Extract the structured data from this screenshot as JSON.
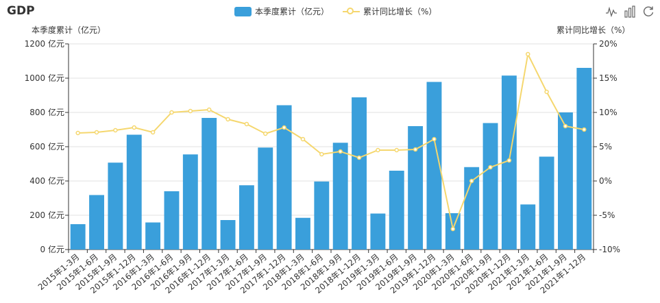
{
  "chart_data": {
    "type": "bar",
    "title": "GDP",
    "categories": [
      "2015年1-3月",
      "2015年1-6月",
      "2015年1-9月",
      "2015年1-12月",
      "2016年1-3月",
      "2016年1-6月",
      "2016年1-9月",
      "2016年1-12月",
      "2017年1-3月",
      "2017年1-6月",
      "2017年1-9月",
      "2017年1-12月",
      "2018年1-3月",
      "2018年1-6月",
      "2018年1-9月",
      "2018年1-12月",
      "2019年1-3月",
      "2019年1-6月",
      "2019年1-9月",
      "2019年1-12月",
      "2020年1-3月",
      "2020年1-6月",
      "2020年1-9月",
      "2020年1-12月",
      "2021年1-3月",
      "2021年1-6月",
      "2021年1-9月",
      "2021年1-12月"
    ],
    "series": [
      {
        "name": "本季度累计（亿元）",
        "type": "bar",
        "axis": "left",
        "color": "#3a9fdb",
        "values": [
          148,
          318,
          507,
          670,
          158,
          340,
          555,
          768,
          172,
          375,
          595,
          842,
          185,
          397,
          623,
          888,
          210,
          460,
          720,
          978,
          212,
          481,
          738,
          1015,
          263,
          542,
          800,
          1060
        ]
      },
      {
        "name": "累计同比增长（%）",
        "type": "line",
        "axis": "right",
        "color": "#f5d76e",
        "values": [
          7.0,
          7.1,
          7.4,
          7.8,
          7.1,
          10.0,
          10.2,
          10.4,
          9.0,
          8.3,
          6.9,
          7.8,
          6.1,
          3.9,
          4.3,
          3.4,
          4.5,
          4.5,
          4.6,
          6.1,
          -7.0,
          0.0,
          2.0,
          3.0,
          18.5,
          13.0,
          8.0,
          7.5
        ]
      }
    ],
    "y_left": {
      "name": "本季度累计（亿元）",
      "min": 0,
      "max": 1200,
      "interval": 200,
      "unit": " 亿元"
    },
    "y_right": {
      "name": "累计同比增长（%）",
      "min": -10,
      "max": 20,
      "interval": 5,
      "unit": "%"
    },
    "grid": "horizontal",
    "legend_position": "top-center",
    "x_label_rotate": 40
  },
  "toolbox": {
    "icons": [
      "line-chart-icon",
      "bar-chart-icon",
      "restore-icon"
    ]
  }
}
